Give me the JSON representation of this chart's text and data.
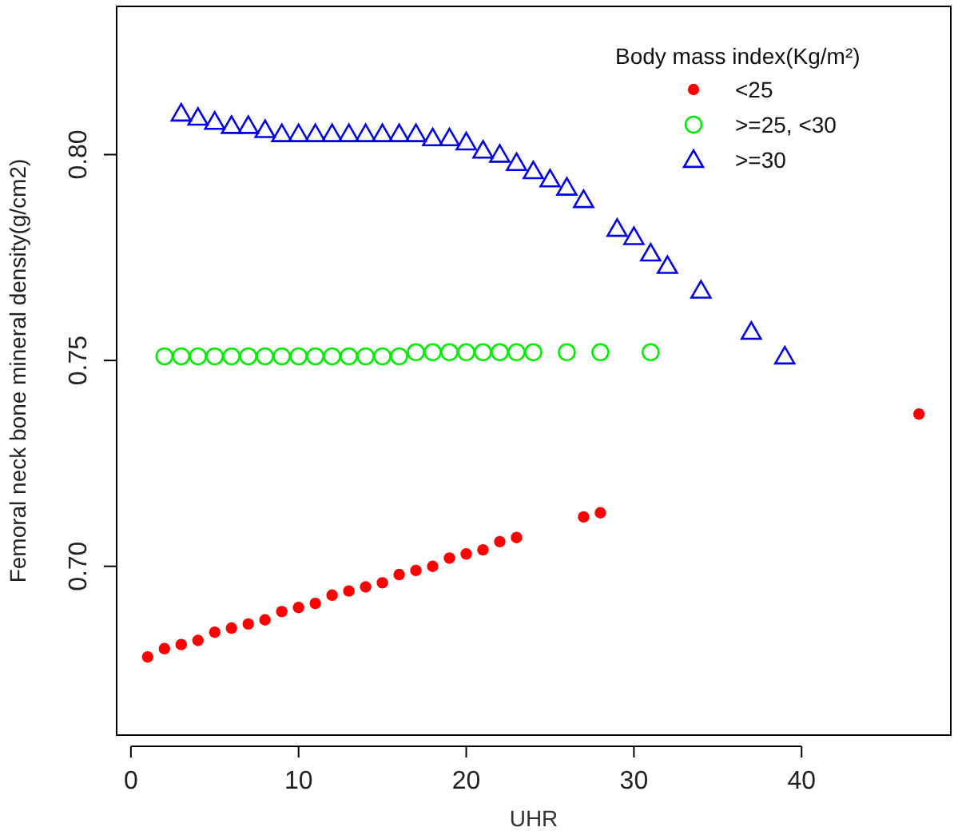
{
  "chart_data": {
    "type": "scatter",
    "xlabel": "UHR",
    "ylabel": "Femoral neck bone mineral density(g/cm2)",
    "legend_title": "Body mass index(Kg/m²)",
    "legend": "top right",
    "xlim": [
      -0.85,
      48.9
    ],
    "xticks": [
      0,
      10,
      20,
      30,
      40
    ],
    "ylim": [
      0.659,
      0.836
    ],
    "yticks": [
      {
        "value": 0.7,
        "label": "0.70"
      },
      {
        "value": 0.75,
        "label": "0.75"
      },
      {
        "value": 0.8,
        "label": "0.80"
      }
    ],
    "series": [
      {
        "name": "<25",
        "color": "#ff0000",
        "marker": "circle",
        "x": [
          1,
          2,
          3,
          4,
          5,
          6,
          7,
          8,
          9,
          10,
          11,
          12,
          13,
          14,
          15,
          16,
          17,
          18,
          19,
          20,
          21,
          22,
          23,
          27,
          28,
          47
        ],
        "values": [
          0.678,
          0.68,
          0.681,
          0.682,
          0.684,
          0.685,
          0.686,
          0.687,
          0.689,
          0.69,
          0.691,
          0.693,
          0.694,
          0.695,
          0.696,
          0.698,
          0.699,
          0.7,
          0.702,
          0.703,
          0.704,
          0.706,
          0.707,
          0.712,
          0.713,
          0.737
        ]
      },
      {
        "name": ">=25, <30",
        "color": "#00ee00",
        "marker": "circle-open",
        "x": [
          2,
          3,
          4,
          5,
          6,
          7,
          8,
          9,
          10,
          11,
          12,
          13,
          14,
          15,
          16,
          17,
          18,
          19,
          20,
          21,
          22,
          23,
          24,
          26,
          28,
          31
        ],
        "values": [
          0.751,
          0.751,
          0.751,
          0.751,
          0.751,
          0.751,
          0.751,
          0.751,
          0.751,
          0.751,
          0.751,
          0.751,
          0.751,
          0.751,
          0.751,
          0.752,
          0.752,
          0.752,
          0.752,
          0.752,
          0.752,
          0.752,
          0.752,
          0.752,
          0.752,
          0.752
        ]
      },
      {
        "name": ">=30",
        "color": "#0000ee",
        "marker": "triangle",
        "x": [
          3,
          4,
          5,
          6,
          7,
          8,
          9,
          10,
          11,
          12,
          13,
          14,
          15,
          16,
          17,
          18,
          19,
          20,
          21,
          22,
          23,
          24,
          25,
          26,
          27,
          29,
          30,
          31,
          32,
          34,
          37,
          39
        ],
        "values": [
          0.81,
          0.809,
          0.808,
          0.807,
          0.807,
          0.806,
          0.805,
          0.805,
          0.805,
          0.805,
          0.805,
          0.805,
          0.805,
          0.805,
          0.805,
          0.804,
          0.804,
          0.803,
          0.801,
          0.8,
          0.798,
          0.796,
          0.794,
          0.792,
          0.789,
          0.782,
          0.78,
          0.776,
          0.773,
          0.767,
          0.757,
          0.751
        ]
      }
    ]
  }
}
